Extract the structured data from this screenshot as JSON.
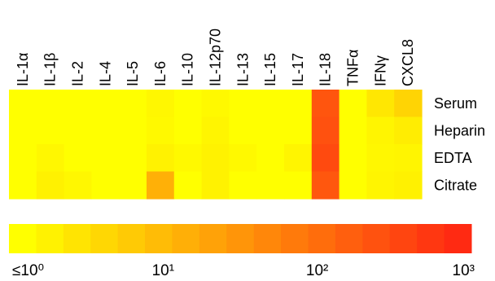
{
  "chart_data": {
    "type": "heatmap",
    "columns": [
      "IL-1α",
      "IL-1β",
      "IL-2",
      "IL-4",
      "IL-5",
      "IL-6",
      "IL-10",
      "IL-12p70",
      "IL-13",
      "IL-15",
      "IL-17",
      "IL-18",
      "TNFα",
      "IFNγ",
      "CXCL8"
    ],
    "rows": [
      "Serum",
      "Heparin",
      "EDTA",
      "Citrate"
    ],
    "scale": "log10",
    "color_range": {
      "min": 1,
      "max": 1000
    },
    "values": [
      [
        1.0,
        1.0,
        1.0,
        1.0,
        1.0,
        1.3,
        1.0,
        1.2,
        1.0,
        1.0,
        1.0,
        250,
        1.0,
        2.2,
        4.0
      ],
      [
        1.0,
        1.0,
        1.0,
        1.0,
        1.0,
        1.2,
        1.0,
        1.4,
        1.0,
        1.0,
        1.0,
        280,
        1.0,
        1.4,
        1.8
      ],
      [
        1.0,
        1.3,
        1.0,
        1.0,
        1.0,
        1.5,
        1.2,
        1.5,
        1.2,
        1.0,
        1.4,
        350,
        1.0,
        1.3,
        1.4
      ],
      [
        1.0,
        1.6,
        1.3,
        1.0,
        1.0,
        13,
        1.0,
        1.5,
        1.0,
        1.0,
        1.0,
        230,
        1.0,
        1.4,
        1.6
      ]
    ],
    "colorbar": {
      "steps": 17,
      "tick_labels": [
        "≤10⁰",
        "10¹",
        "10²",
        "10³"
      ],
      "tick_values": [
        1,
        10,
        100,
        1000
      ]
    },
    "colors": {
      "low": "#ffff00",
      "high": "#ff2a12"
    }
  }
}
